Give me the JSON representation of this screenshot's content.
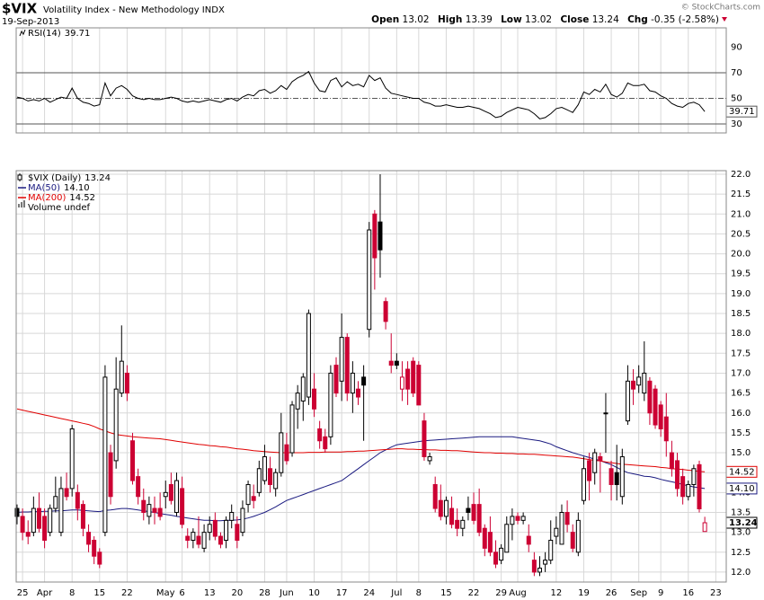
{
  "header": {
    "symbol": "$VIX",
    "name": "Volatility Index - New Methodology INDX",
    "date": "19-Sep-2013",
    "credit": "© StockCharts.com",
    "quote_labels": [
      "Open",
      "High",
      "Low",
      "Close",
      "Chg"
    ],
    "change": -0.35,
    "change_pct_label": "(-2.58%)"
  },
  "chart_data": [
    {
      "type": "line",
      "panel": "indicator",
      "series": [
        {
          "name": "RSI(14)",
          "color": "#000000",
          "values": [
            51,
            50,
            48,
            49,
            48,
            50,
            47,
            49,
            51,
            50,
            58,
            50,
            47,
            46,
            44,
            45,
            62,
            52,
            58,
            60,
            57,
            52,
            50,
            49,
            50,
            49,
            49,
            50,
            51,
            50,
            48,
            47,
            48,
            47,
            48,
            49,
            48,
            47,
            49,
            50,
            48,
            51,
            53,
            52,
            56,
            57,
            54,
            56,
            60,
            57,
            63,
            66,
            68,
            71,
            62,
            56,
            55,
            64,
            66,
            59,
            63,
            60,
            61,
            59,
            68,
            64,
            66,
            58,
            54,
            53,
            52,
            51,
            50,
            50,
            47,
            46,
            44,
            44,
            45,
            44,
            43,
            43,
            44,
            43,
            42,
            40,
            38,
            35,
            36,
            39,
            41,
            43,
            42,
            41,
            38,
            34,
            35,
            38,
            42,
            43,
            41,
            39,
            45,
            55,
            53,
            57,
            55,
            61,
            53,
            51,
            54,
            62,
            60,
            60,
            61,
            56,
            55,
            52,
            50,
            46,
            44,
            43,
            46,
            47,
            45,
            39.71,
            null,
            null
          ]
        }
      ],
      "ylim": [
        23,
        105.1
      ],
      "yticks": [
        30,
        50,
        70,
        90
      ],
      "reference_lines": [
        {
          "value": 30,
          "style": "solid"
        },
        {
          "value": 50,
          "style": "dashed"
        },
        {
          "value": 70,
          "style": "solid"
        }
      ],
      "grid": true
    },
    {
      "type": "candlestick",
      "panel": "price",
      "name": "$VIX (Daily)",
      "up_color": "#000000",
      "down_color": "#cc0033",
      "volume_label": "Volume undef",
      "categories": [
        null,
        "25",
        null,
        null,
        null,
        "Apr",
        null,
        null,
        null,
        null,
        "8",
        null,
        null,
        null,
        null,
        "15",
        null,
        null,
        null,
        null,
        "22",
        null,
        null,
        null,
        null,
        null,
        null,
        "May",
        null,
        null,
        "6",
        null,
        null,
        null,
        null,
        "13",
        null,
        null,
        null,
        null,
        "20",
        null,
        null,
        null,
        null,
        "28",
        null,
        null,
        null,
        "Jun",
        null,
        null,
        null,
        null,
        "10",
        null,
        null,
        null,
        null,
        "17",
        null,
        null,
        null,
        null,
        "24",
        null,
        null,
        null,
        null,
        "Jul",
        null,
        null,
        null,
        "8",
        null,
        null,
        null,
        null,
        "15",
        null,
        null,
        null,
        null,
        "22",
        null,
        null,
        null,
        null,
        "29",
        null,
        null,
        "Aug",
        null,
        null,
        null,
        null,
        null,
        null,
        "12",
        null,
        null,
        null,
        null,
        "19",
        null,
        null,
        null,
        null,
        "26",
        null,
        null,
        null,
        null,
        "Sep",
        null,
        null,
        null,
        "9",
        null,
        null,
        null,
        null,
        "16",
        null,
        null,
        null,
        null,
        "23"
      ],
      "open": [
        13.6,
        13.4,
        13.0,
        13.0,
        13.6,
        13.4,
        13.0,
        13.6,
        13.0,
        14.1,
        14.1,
        14.0,
        13.7,
        13.0,
        12.8,
        12.5,
        13.0,
        15.0,
        14.8,
        16.5,
        17.0,
        15.3,
        14.4,
        13.8,
        13.4,
        13.6,
        13.6,
        13.9,
        14.2,
        13.5,
        14.1,
        12.9,
        12.8,
        12.9,
        12.6,
        13.0,
        13.3,
        12.9,
        12.8,
        13.3,
        13.2,
        13.0,
        13.7,
        13.9,
        14.0,
        14.3,
        14.6,
        14.1,
        14.5,
        15.2,
        15.0,
        16.1,
        16.3,
        16.4,
        16.6,
        15.6,
        15.4,
        15.4,
        17.2,
        16.8,
        17.9,
        16.5,
        16.6,
        16.9,
        18.1,
        21.0,
        20.8,
        18.8,
        17.3,
        17.3,
        16.6,
        17.1,
        17.3,
        17.2,
        15.8,
        14.8,
        14.2,
        13.8,
        13.4,
        13.6,
        13.3,
        13.1,
        13.6,
        13.7,
        13.7,
        13.1,
        13.0,
        12.5,
        12.3,
        12.5,
        13.2,
        13.4,
        13.3,
        12.9,
        12.3,
        12.0,
        12.2,
        12.3,
        12.9,
        12.7,
        13.5,
        13.0,
        12.5,
        13.8,
        14.8,
        14.5,
        14.9,
        16.0,
        14.6,
        14.5,
        13.9,
        15.8,
        16.8,
        16.7,
        16.5,
        16.8,
        16.6,
        16.2,
        15.9,
        15.0,
        14.8,
        14.4,
        13.9,
        14.2,
        14.7,
        13.02,
        null,
        null
      ],
      "high": [
        13.7,
        13.6,
        13.3,
        13.9,
        14.0,
        13.6,
        13.7,
        14.4,
        14.4,
        14.5,
        15.7,
        14.2,
        13.8,
        13.2,
        12.9,
        12.6,
        17.2,
        15.2,
        17.4,
        18.2,
        17.2,
        15.5,
        14.6,
        14.1,
        13.9,
        13.9,
        14.0,
        14.3,
        14.5,
        14.5,
        14.4,
        13.1,
        13.1,
        13.4,
        13.2,
        13.4,
        13.5,
        13.0,
        13.4,
        13.7,
        13.4,
        13.8,
        14.3,
        14.2,
        14.8,
        15.2,
        14.9,
        14.6,
        16.0,
        15.5,
        16.3,
        16.7,
        17.0,
        18.6,
        17.0,
        15.8,
        15.6,
        17.2,
        17.4,
        18.5,
        18.0,
        17.3,
        16.8,
        17.2,
        20.8,
        21.1,
        22.0,
        18.9,
        18.0,
        17.5,
        17.3,
        17.3,
        17.4,
        17.3,
        16.0,
        15.0,
        14.4,
        14.2,
        13.9,
        13.9,
        13.6,
        13.4,
        13.9,
        14.0,
        14.1,
        13.2,
        13.4,
        12.8,
        12.7,
        13.4,
        13.6,
        13.5,
        13.5,
        13.2,
        12.5,
        12.4,
        12.5,
        13.3,
        13.4,
        13.7,
        13.8,
        13.2,
        13.5,
        14.9,
        15.0,
        15.1,
        15.0,
        16.5,
        14.8,
        15.2,
        15.1,
        17.2,
        17.1,
        17.2,
        17.8,
        16.9,
        16.7,
        16.3,
        16.5,
        15.3,
        15.0,
        14.6,
        14.3,
        14.7,
        14.8,
        13.39,
        null,
        null
      ],
      "low": [
        13.2,
        12.8,
        12.7,
        12.9,
        13.0,
        12.6,
        12.9,
        13.5,
        12.9,
        13.8,
        13.9,
        13.3,
        12.9,
        12.5,
        12.2,
        12.1,
        12.9,
        13.7,
        14.6,
        16.4,
        16.3,
        14.2,
        13.7,
        13.3,
        13.2,
        13.2,
        13.3,
        13.6,
        13.7,
        13.4,
        13.1,
        12.6,
        12.6,
        12.6,
        12.5,
        12.8,
        12.8,
        12.6,
        12.6,
        13.1,
        12.6,
        12.9,
        13.5,
        13.6,
        13.9,
        14.2,
        14.0,
        13.9,
        14.4,
        14.7,
        14.9,
        15.6,
        15.8,
        16.2,
        15.9,
        15.1,
        15.0,
        15.2,
        16.4,
        16.3,
        16.3,
        16.0,
        16.2,
        15.3,
        17.9,
        19.1,
        19.4,
        18.1,
        17.0,
        17.1,
        16.3,
        16.2,
        16.4,
        16.2,
        14.8,
        14.7,
        13.5,
        13.3,
        13.2,
        13.1,
        12.9,
        12.9,
        13.3,
        13.2,
        12.9,
        12.4,
        12.4,
        12.1,
        12.2,
        12.5,
        12.8,
        13.2,
        13.2,
        12.5,
        11.9,
        11.9,
        12.0,
        12.2,
        12.7,
        12.7,
        13.0,
        12.5,
        12.4,
        13.7,
        13.8,
        14.2,
        14.0,
        15.0,
        13.8,
        13.8,
        13.7,
        15.7,
        16.2,
        16.5,
        16.3,
        15.7,
        15.6,
        15.4,
        14.9,
        14.4,
        13.9,
        13.7,
        13.8,
        13.9,
        13.5,
        13.02,
        null,
        null
      ],
      "close": [
        13.4,
        13.0,
        12.9,
        13.6,
        13.1,
        12.8,
        13.6,
        13.9,
        14.1,
        13.9,
        15.6,
        13.6,
        13.1,
        12.7,
        12.4,
        12.2,
        16.9,
        13.9,
        16.6,
        17.3,
        16.5,
        14.3,
        13.9,
        13.5,
        13.7,
        13.5,
        13.4,
        14.0,
        13.8,
        14.3,
        13.2,
        12.8,
        13.0,
        12.7,
        13.0,
        13.2,
        12.9,
        12.7,
        13.3,
        13.5,
        12.8,
        13.6,
        14.2,
        13.8,
        14.6,
        14.9,
        14.2,
        14.5,
        15.5,
        14.8,
        16.2,
        16.5,
        16.9,
        18.5,
        16.1,
        15.3,
        15.1,
        17.0,
        16.5,
        17.9,
        16.5,
        17.0,
        16.4,
        16.7,
        20.6,
        19.9,
        20.1,
        18.3,
        17.2,
        17.2,
        16.9,
        16.6,
        16.5,
        16.2,
        14.9,
        14.9,
        13.6,
        13.4,
        13.8,
        13.2,
        13.1,
        13.3,
        13.5,
        13.3,
        13.0,
        12.6,
        12.5,
        12.2,
        12.6,
        13.2,
        13.4,
        13.3,
        13.4,
        12.7,
        12.0,
        12.1,
        12.3,
        12.8,
        13.1,
        13.5,
        13.2,
        12.6,
        13.3,
        14.6,
        14.3,
        15.0,
        14.8,
        16.0,
        14.2,
        14.2,
        14.9,
        16.8,
        16.6,
        16.9,
        17.0,
        16.0,
        15.7,
        15.6,
        15.3,
        14.6,
        14.1,
        13.9,
        14.2,
        14.6,
        13.59,
        13.24,
        null,
        null
      ],
      "series": [
        {
          "name": "MA(50)",
          "color": "#1a1a80",
          "last_label": "14.10",
          "values": [
            13.5,
            13.51,
            13.51,
            13.52,
            13.52,
            13.53,
            13.53,
            13.54,
            13.54,
            13.55,
            13.56,
            13.56,
            13.55,
            13.54,
            13.53,
            13.52,
            13.55,
            13.56,
            13.58,
            13.6,
            13.6,
            13.58,
            13.56,
            13.54,
            13.52,
            13.5,
            13.47,
            13.45,
            13.43,
            13.4,
            13.38,
            13.36,
            13.34,
            13.32,
            13.3,
            13.3,
            13.29,
            13.29,
            13.3,
            13.3,
            13.31,
            13.33,
            13.36,
            13.4,
            13.45,
            13.5,
            13.57,
            13.64,
            13.72,
            13.8,
            13.85,
            13.9,
            13.95,
            14.0,
            14.05,
            14.1,
            14.15,
            14.2,
            14.25,
            14.3,
            14.4,
            14.5,
            14.6,
            14.7,
            14.8,
            14.9,
            15.0,
            15.07,
            15.14,
            15.2,
            15.22,
            15.24,
            15.26,
            15.28,
            15.3,
            15.31,
            15.32,
            15.33,
            15.34,
            15.35,
            15.36,
            15.37,
            15.38,
            15.39,
            15.4,
            15.4,
            15.4,
            15.4,
            15.4,
            15.4,
            15.4,
            15.38,
            15.36,
            15.34,
            15.32,
            15.3,
            15.26,
            15.22,
            15.15,
            15.1,
            15.05,
            15.0,
            14.96,
            14.92,
            14.88,
            14.84,
            14.8,
            14.75,
            14.7,
            14.63,
            14.56,
            14.5,
            14.47,
            14.44,
            14.41,
            14.4,
            14.37,
            14.33,
            14.3,
            14.27,
            14.24,
            14.2,
            14.17,
            14.14,
            14.12,
            14.1,
            null,
            null
          ]
        },
        {
          "name": "MA(200)",
          "color": "#e00000",
          "last_label": "14.52",
          "values": [
            16.1,
            16.07,
            16.04,
            16.01,
            15.98,
            15.95,
            15.92,
            15.89,
            15.86,
            15.83,
            15.8,
            15.77,
            15.74,
            15.71,
            15.66,
            15.6,
            15.55,
            15.5,
            15.46,
            15.44,
            15.42,
            15.4,
            15.39,
            15.38,
            15.37,
            15.36,
            15.35,
            15.33,
            15.31,
            15.29,
            15.27,
            15.25,
            15.23,
            15.21,
            15.2,
            15.18,
            15.17,
            15.15,
            15.14,
            15.12,
            15.1,
            15.09,
            15.07,
            15.05,
            15.04,
            15.03,
            15.02,
            15.01,
            15.0,
            15.0,
            15.0,
            15.0,
            15.0,
            15.01,
            15.01,
            15.01,
            15.02,
            15.02,
            15.02,
            15.02,
            15.03,
            15.03,
            15.04,
            15.04,
            15.05,
            15.06,
            15.07,
            15.08,
            15.09,
            15.1,
            15.1,
            15.09,
            15.09,
            15.08,
            15.08,
            15.07,
            15.07,
            15.06,
            15.06,
            15.05,
            15.05,
            15.04,
            15.03,
            15.02,
            15.01,
            15.0,
            15.0,
            14.99,
            14.99,
            14.98,
            14.98,
            14.97,
            14.97,
            14.96,
            14.96,
            14.95,
            14.94,
            14.93,
            14.92,
            14.91,
            14.9,
            14.89,
            14.87,
            14.85,
            14.83,
            14.81,
            14.79,
            14.77,
            14.75,
            14.73,
            14.71,
            14.7,
            14.69,
            14.68,
            14.67,
            14.66,
            14.65,
            14.63,
            14.62,
            14.6,
            14.59,
            14.58,
            14.56,
            14.55,
            14.53,
            14.52,
            null,
            null
          ]
        }
      ],
      "xlim": [
        -0.16,
        128.9
      ],
      "ylim": [
        11.75,
        22.09
      ],
      "yticks": [
        {
          "value": 12,
          "label": "12.0"
        },
        {
          "value": 12.5,
          "label": "12.5"
        },
        {
          "value": 13,
          "label": "13.0"
        },
        {
          "value": 13.5,
          "label": "13.5"
        },
        {
          "value": 14,
          "label": "14.0"
        },
        {
          "value": 14.5,
          "label": "14.5"
        },
        {
          "value": 15,
          "label": "15.0"
        },
        {
          "value": 15.5,
          "label": "15.5"
        },
        {
          "value": 16,
          "label": "16.0"
        },
        {
          "value": 16.5,
          "label": "16.5"
        },
        {
          "value": 17,
          "label": "17.0"
        },
        {
          "value": 17.5,
          "label": "17.5"
        },
        {
          "value": 18,
          "label": "18.0"
        },
        {
          "value": 18.5,
          "label": "18.5"
        },
        {
          "value": 19,
          "label": "19.0"
        },
        {
          "value": 19.5,
          "label": "19.5"
        },
        {
          "value": 20,
          "label": "20.0"
        },
        {
          "value": 20.5,
          "label": "20.5"
        },
        {
          "value": 21,
          "label": "21.0"
        },
        {
          "value": 21.5,
          "label": "21.5"
        },
        {
          "value": 22,
          "label": "22.0"
        }
      ],
      "grid": true
    }
  ]
}
